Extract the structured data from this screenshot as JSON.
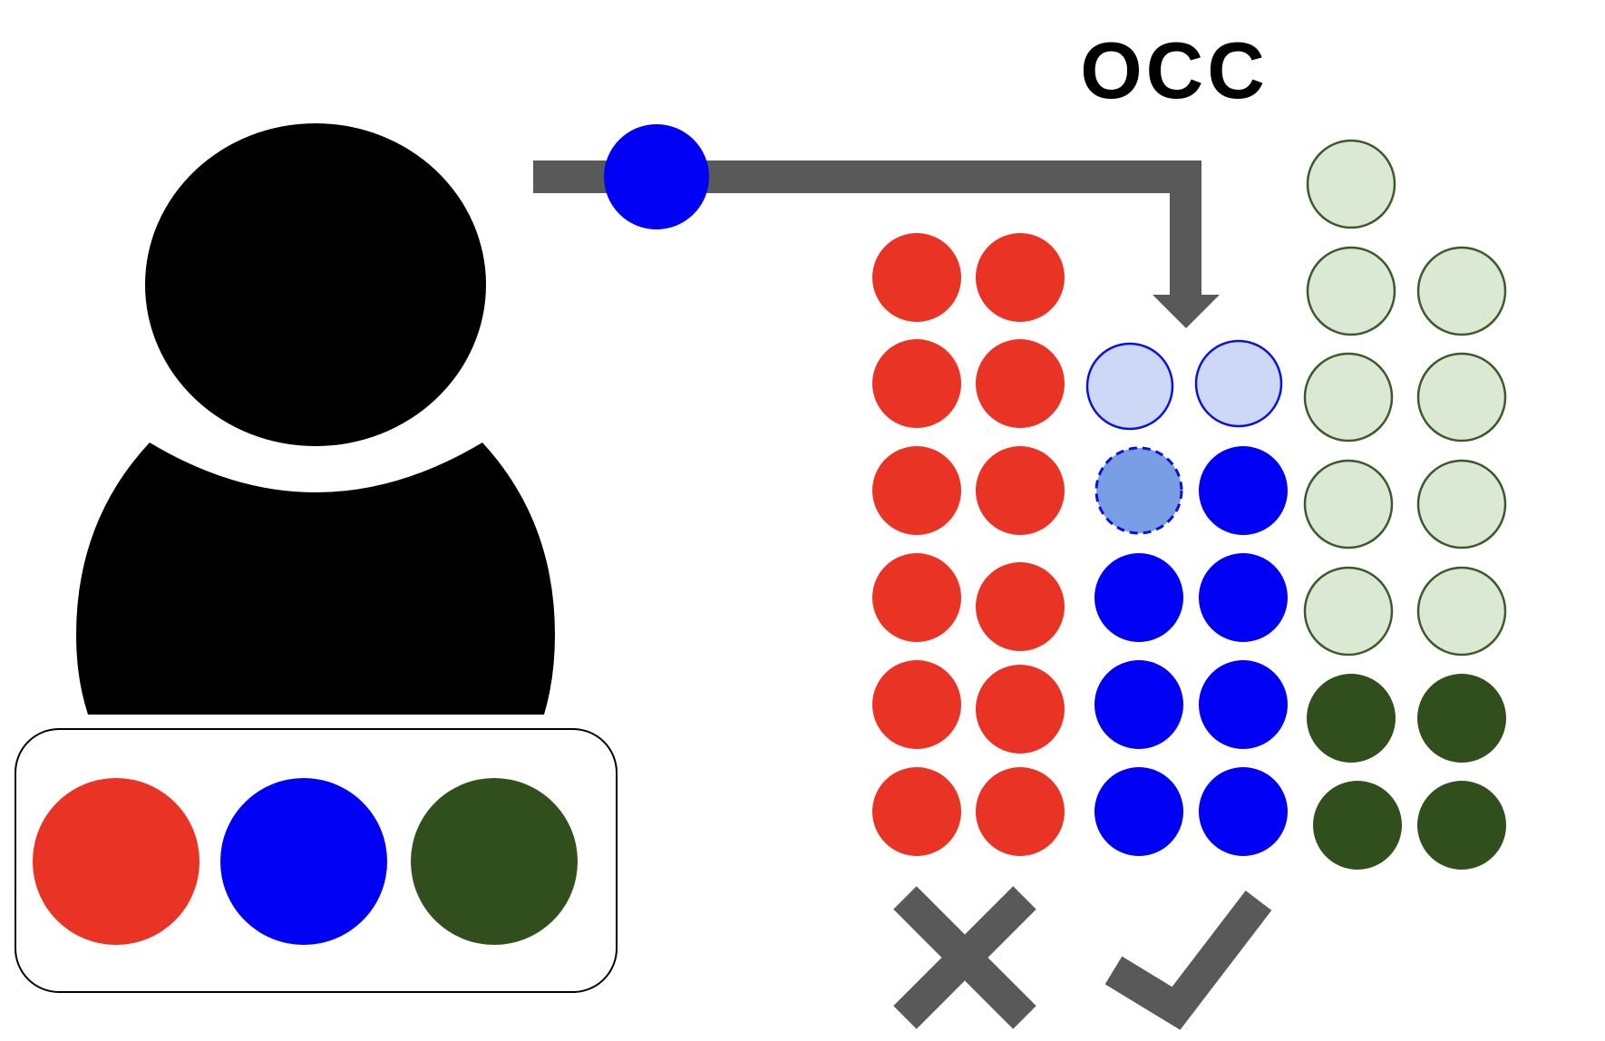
{
  "title": "OCC",
  "colors": {
    "red": "#e93324",
    "blue": "#0000f5",
    "dark_green": "#314f1d",
    "light_green_fill": "#dbe8d4",
    "light_green_stroke": "#3a5a2a",
    "light_blue_fill": "#ccd8f5",
    "light_blue_stroke": "#0a10e0",
    "dashed_blue_fill": "#7a9ee5",
    "arrow_gray": "#595959",
    "person": "#000000",
    "panel_stroke": "#000000"
  },
  "icons": {
    "person": "user-silhouette-icon",
    "reject": "cross-icon",
    "accept": "checkmark-icon",
    "flow": "bent-arrow-icon"
  },
  "palette": [
    "red",
    "blue",
    "dark_green"
  ],
  "moving_token": "blue",
  "grid": {
    "red_column": 12,
    "blue_column": {
      "empty_slots": 2,
      "pending_slot": 1,
      "filled": 7
    },
    "green_column": {
      "empty_slots": 9,
      "filled": 4
    }
  },
  "outcomes": [
    "reject",
    "accept"
  ]
}
